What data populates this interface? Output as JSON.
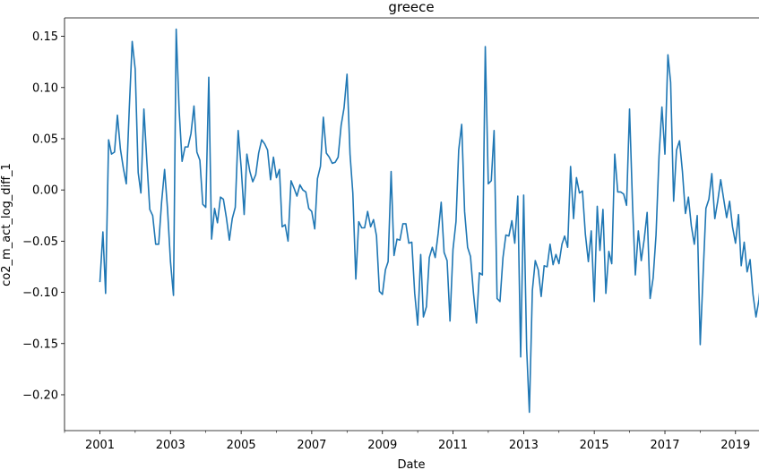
{
  "chart_data": {
    "type": "line",
    "title": "greece",
    "xlabel": "Date",
    "ylabel": "co2_m_act_log_diff_1",
    "x_tick_labels": [
      "2001",
      "2003",
      "2005",
      "2007",
      "2009",
      "2011",
      "2013",
      "2015",
      "2017",
      "2019"
    ],
    "y_tick_labels": [
      "0.15",
      "0.10",
      "0.05",
      "0.00",
      "−0.05",
      "−0.10",
      "−0.15",
      "−0.20"
    ],
    "y_ticks": [
      0.15,
      0.1,
      0.05,
      0.0,
      -0.05,
      -0.1,
      -0.15,
      -0.2
    ],
    "xlim": [
      "2000-01-01",
      "2019-09-01"
    ],
    "ylim": [
      -0.235,
      0.168
    ],
    "grid": false,
    "series": [
      {
        "color": "#1f77b4",
        "start": "2001-01",
        "frequency": "monthly",
        "values": [
          -0.09,
          -0.041,
          -0.101,
          0.049,
          0.035,
          0.037,
          0.073,
          0.04,
          0.021,
          0.006,
          0.08,
          0.145,
          0.118,
          0.017,
          -0.003,
          0.079,
          0.029,
          -0.019,
          -0.025,
          -0.053,
          -0.053,
          -0.012,
          0.02,
          -0.018,
          -0.07,
          -0.103,
          0.157,
          0.077,
          0.028,
          0.042,
          0.042,
          0.055,
          0.082,
          0.037,
          0.029,
          -0.014,
          -0.017,
          0.11,
          -0.048,
          -0.018,
          -0.032,
          -0.007,
          -0.009,
          -0.027,
          -0.049,
          -0.028,
          -0.017,
          0.058,
          0.022,
          -0.024,
          0.035,
          0.018,
          0.008,
          0.015,
          0.036,
          0.049,
          0.045,
          0.039,
          0.01,
          0.032,
          0.012,
          0.02,
          -0.036,
          -0.034,
          -0.05,
          0.009,
          0.002,
          -0.006,
          0.005,
          0.0,
          -0.002,
          -0.018,
          -0.021,
          -0.038,
          0.011,
          0.023,
          0.071,
          0.036,
          0.032,
          0.026,
          0.027,
          0.032,
          0.063,
          0.08,
          0.113,
          0.035,
          -0.003,
          -0.087,
          -0.031,
          -0.037,
          -0.037,
          -0.021,
          -0.036,
          -0.029,
          -0.045,
          -0.099,
          -0.102,
          -0.078,
          -0.07,
          0.018,
          -0.064,
          -0.048,
          -0.049,
          -0.033,
          -0.033,
          -0.052,
          -0.051,
          -0.101,
          -0.132,
          -0.063,
          -0.124,
          -0.114,
          -0.066,
          -0.056,
          -0.066,
          -0.042,
          -0.012,
          -0.061,
          -0.069,
          -0.128,
          -0.058,
          -0.031,
          0.039,
          0.064,
          -0.021,
          -0.056,
          -0.065,
          -0.101,
          -0.13,
          -0.081,
          -0.083,
          0.14,
          0.006,
          0.009,
          0.058,
          -0.106,
          -0.109,
          -0.066,
          -0.044,
          -0.045,
          -0.03,
          -0.052,
          -0.006,
          -0.163,
          -0.005,
          -0.155,
          -0.217,
          -0.098,
          -0.069,
          -0.078,
          -0.104,
          -0.074,
          -0.075,
          -0.053,
          -0.073,
          -0.063,
          -0.072,
          -0.053,
          -0.045,
          -0.056,
          0.023,
          -0.028,
          0.012,
          -0.003,
          -0.001,
          -0.043,
          -0.07,
          -0.04,
          -0.109,
          -0.016,
          -0.059,
          -0.019,
          -0.101,
          -0.06,
          -0.072,
          0.035,
          -0.002,
          -0.002,
          -0.004,
          -0.015,
          0.079,
          -0.014,
          -0.083,
          -0.04,
          -0.069,
          -0.048,
          -0.022,
          -0.106,
          -0.086,
          -0.044,
          0.033,
          0.081,
          0.035,
          0.132,
          0.105,
          -0.011,
          0.039,
          0.048,
          0.018,
          -0.023,
          -0.007,
          -0.035,
          -0.053,
          -0.025,
          -0.151,
          -0.08,
          -0.018,
          -0.009,
          0.016,
          -0.028,
          -0.011,
          0.01,
          -0.009,
          -0.027,
          -0.011,
          -0.036,
          -0.052,
          -0.024,
          -0.074,
          -0.051,
          -0.08,
          -0.068,
          -0.102,
          -0.124,
          -0.107,
          -0.077,
          -0.087
        ]
      }
    ]
  }
}
